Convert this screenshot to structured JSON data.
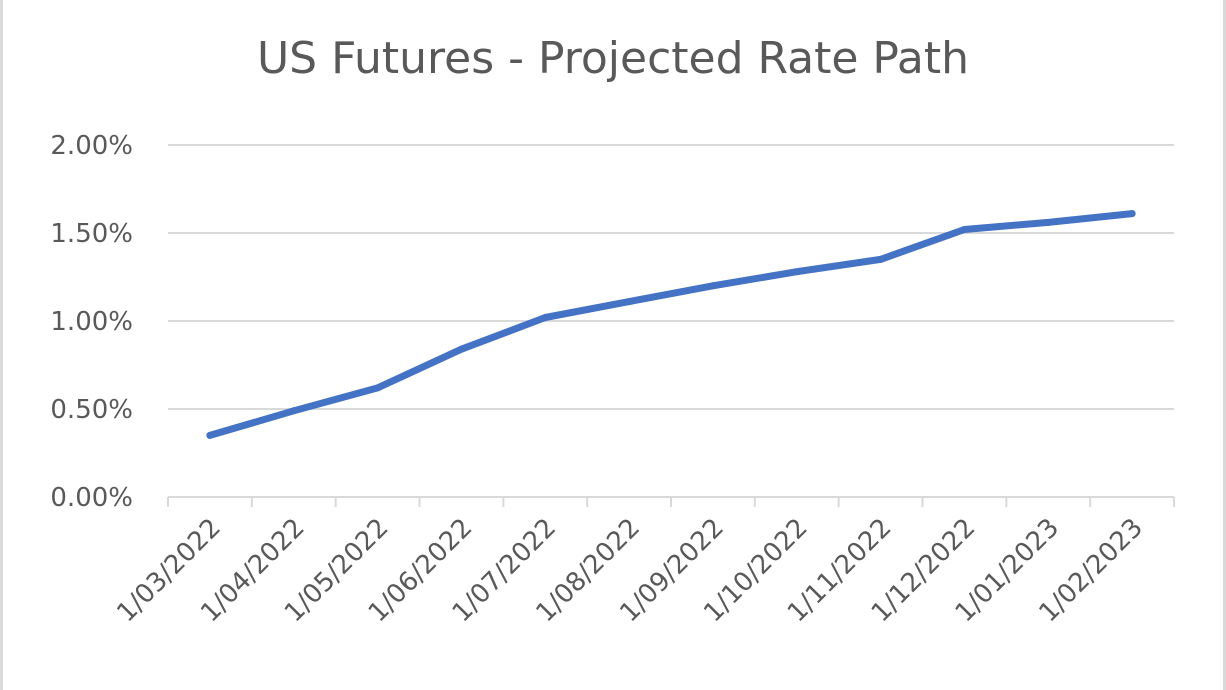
{
  "chart_data": {
    "type": "line",
    "title": "US Futures - Projected Rate Path",
    "categories": [
      "1/03/2022",
      "1/04/2022",
      "1/05/2022",
      "1/06/2022",
      "1/07/2022",
      "1/08/2022",
      "1/09/2022",
      "1/10/2022",
      "1/11/2022",
      "1/12/2022",
      "1/01/2023",
      "1/02/2023"
    ],
    "series": [
      {
        "values": [
          0.35,
          0.49,
          0.62,
          0.84,
          1.02,
          1.11,
          1.2,
          1.28,
          1.35,
          1.52,
          1.56,
          1.61
        ],
        "color": "#4472c4"
      }
    ],
    "y_ticks": [
      "0.00%",
      "0.50%",
      "1.00%",
      "1.50%",
      "2.00%"
    ],
    "ylim": [
      0,
      2
    ],
    "y_unit": "%",
    "xlabel": "",
    "ylabel": "",
    "grid": true,
    "legend": "none"
  }
}
